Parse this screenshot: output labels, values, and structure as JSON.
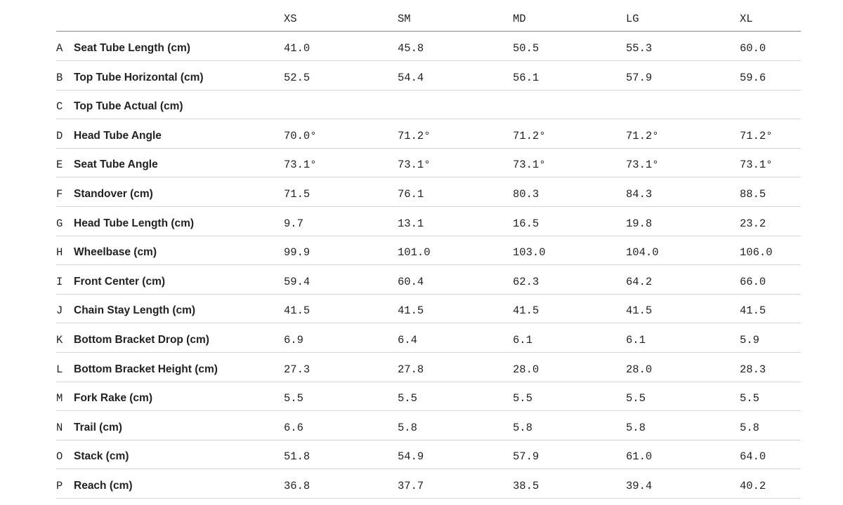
{
  "table": {
    "columns": [
      "XS",
      "SM",
      "MD",
      "LG",
      "XL"
    ],
    "rows": [
      {
        "letter": "A",
        "label": "Seat Tube Length (cm)",
        "values": [
          "41.0",
          "45.8",
          "50.5",
          "55.3",
          "60.0"
        ]
      },
      {
        "letter": "B",
        "label": "Top Tube Horizontal (cm)",
        "values": [
          "52.5",
          "54.4",
          "56.1",
          "57.9",
          "59.6"
        ]
      },
      {
        "letter": "C",
        "label": "Top Tube Actual (cm)",
        "values": []
      },
      {
        "letter": "D",
        "label": "Head Tube Angle",
        "values": [
          "70.0°",
          "71.2°",
          "71.2°",
          "71.2°",
          "71.2°"
        ]
      },
      {
        "letter": "E",
        "label": "Seat Tube Angle",
        "values": [
          "73.1°",
          "73.1°",
          "73.1°",
          "73.1°",
          "73.1°"
        ]
      },
      {
        "letter": "F",
        "label": "Standover (cm)",
        "values": [
          "71.5",
          "76.1",
          "80.3",
          "84.3",
          "88.5"
        ]
      },
      {
        "letter": "G",
        "label": "Head Tube Length (cm)",
        "values": [
          "9.7",
          "13.1",
          "16.5",
          "19.8",
          "23.2"
        ]
      },
      {
        "letter": "H",
        "label": "Wheelbase (cm)",
        "values": [
          "99.9",
          "101.0",
          "103.0",
          "104.0",
          "106.0"
        ]
      },
      {
        "letter": "I",
        "label": "Front Center (cm)",
        "values": [
          "59.4",
          "60.4",
          "62.3",
          "64.2",
          "66.0"
        ]
      },
      {
        "letter": "J",
        "label": "Chain Stay Length (cm)",
        "values": [
          "41.5",
          "41.5",
          "41.5",
          "41.5",
          "41.5"
        ]
      },
      {
        "letter": "K",
        "label": "Bottom Bracket Drop (cm)",
        "values": [
          "6.9",
          "6.4",
          "6.1",
          "6.1",
          "5.9"
        ]
      },
      {
        "letter": "L",
        "label": "Bottom Bracket Height (cm)",
        "values": [
          "27.3",
          "27.8",
          "28.0",
          "28.0",
          "28.3"
        ]
      },
      {
        "letter": "M",
        "label": "Fork Rake (cm)",
        "values": [
          "5.5",
          "5.5",
          "5.5",
          "5.5",
          "5.5"
        ]
      },
      {
        "letter": "N",
        "label": "Trail (cm)",
        "values": [
          "6.6",
          "5.8",
          "5.8",
          "5.8",
          "5.8"
        ]
      },
      {
        "letter": "O",
        "label": "Stack (cm)",
        "values": [
          "51.8",
          "54.9",
          "57.9",
          "61.0",
          "64.0"
        ]
      },
      {
        "letter": "P",
        "label": "Reach (cm)",
        "values": [
          "36.8",
          "37.7",
          "38.5",
          "39.4",
          "40.2"
        ]
      }
    ]
  }
}
